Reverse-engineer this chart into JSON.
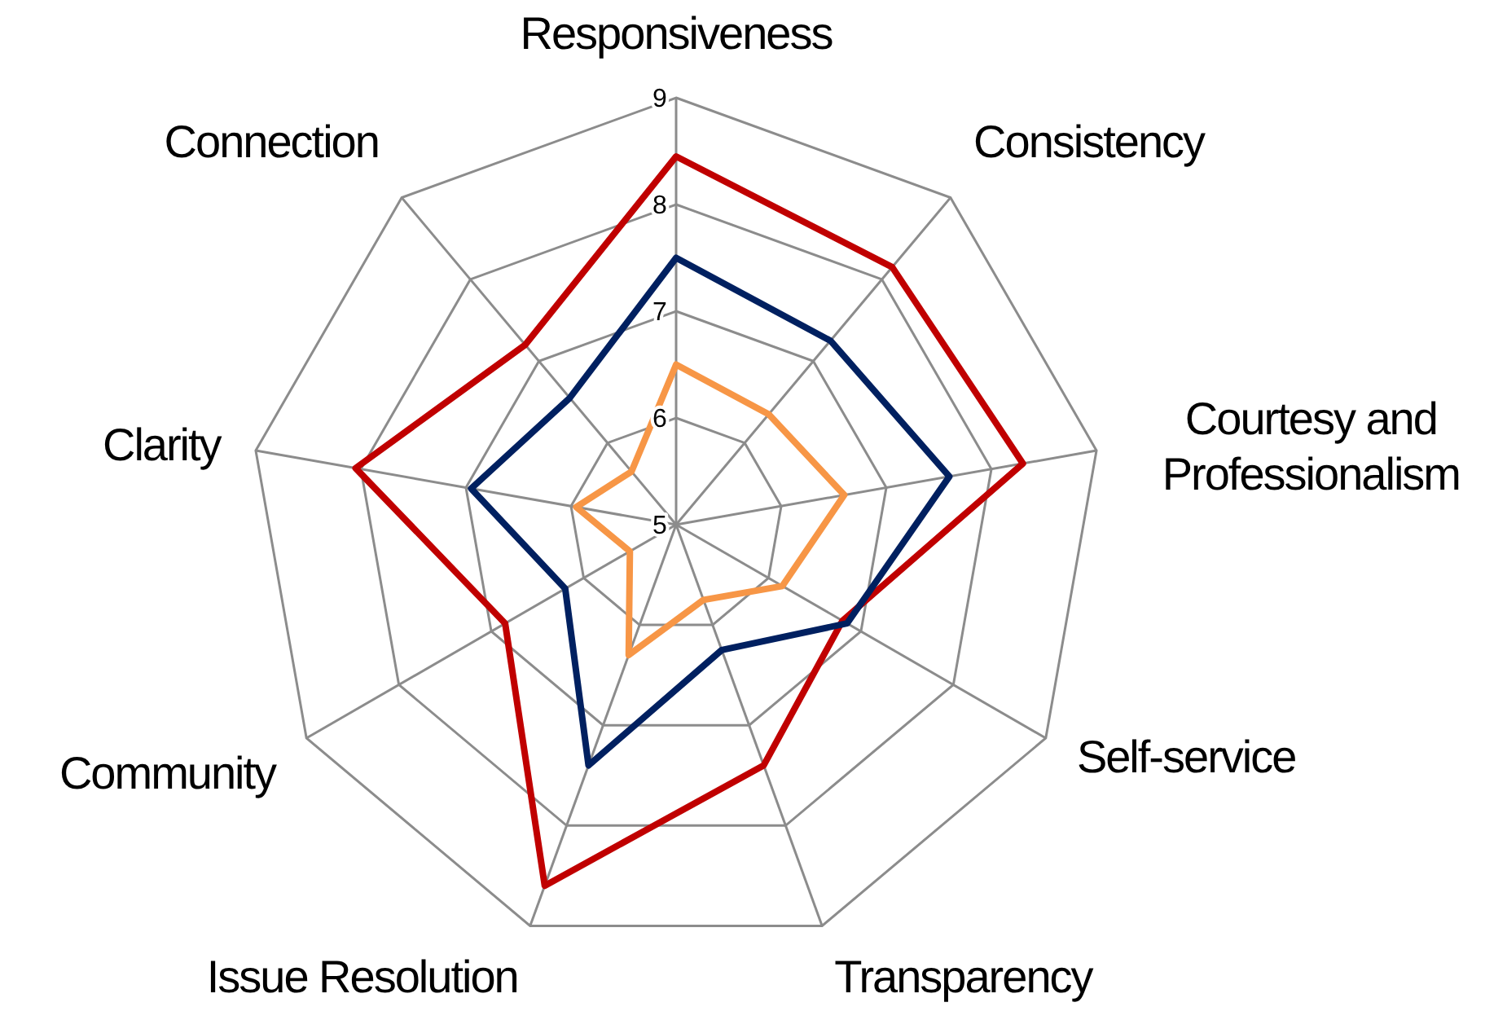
{
  "chart_data": {
    "type": "radar",
    "categories": [
      "Responsiveness",
      "Consistency",
      "Courtesy and Professionalism",
      "Self-service",
      "Transparency",
      "Issue Resolution",
      "Community",
      "Clarity",
      "Connection"
    ],
    "series": [
      {
        "color": "#c00000",
        "values": [
          8.45,
          8.15,
          8.3,
          6.8,
          7.4,
          8.6,
          6.85,
          8.05,
          7.2
        ]
      },
      {
        "color": "#002060",
        "values": [
          7.5,
          7.25,
          7.6,
          6.85,
          6.25,
          7.4,
          6.2,
          6.95,
          6.55
        ]
      },
      {
        "color": "#f79646",
        "values": [
          6.5,
          6.35,
          6.6,
          6.15,
          5.75,
          6.3,
          5.5,
          5.95,
          5.65
        ]
      }
    ],
    "ylim": [
      5,
      9
    ],
    "yticks": [
      5,
      6,
      7,
      8,
      9
    ],
    "grid": true,
    "marker": "none",
    "line_style": "solid"
  }
}
